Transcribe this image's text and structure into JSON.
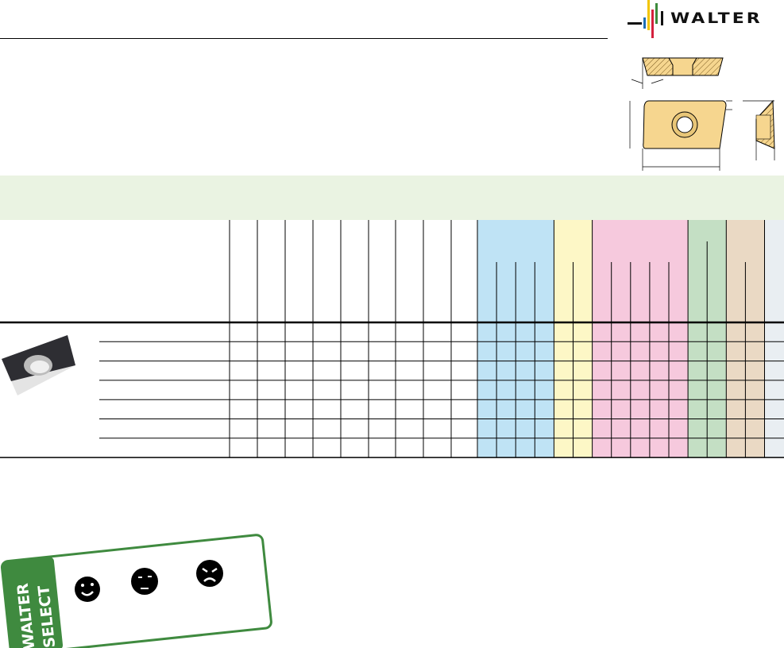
{
  "brand": {
    "logo_text": "WALTER",
    "logo_bar_colors": [
      "#1f6fb5",
      "#f2c500",
      "#d4213d",
      "#3d8b3d"
    ]
  },
  "material_groups": [
    {
      "key": "P",
      "color": "#bfe3f5",
      "subcolumns": 4
    },
    {
      "key": "M",
      "color": "#fdf7c6",
      "subcolumns": 2
    },
    {
      "key": "K",
      "color": "#f6c9dd",
      "subcolumns": 5
    },
    {
      "key": "N",
      "color": "#c4dfc4",
      "subcolumns": 2
    },
    {
      "key": "S",
      "color": "#ead9c4",
      "subcolumns": 2
    },
    {
      "key": "H",
      "color": "#e9eef2",
      "subcolumns": 1
    }
  ],
  "table": {
    "row_count": 7,
    "dimension_columns": 9
  },
  "walter_select": {
    "title_line1": "WALTER",
    "title_line2": "SELECT",
    "accent": "#3f8a3f",
    "icons": [
      "happy-face-icon",
      "neutral-face-icon",
      "angry-face-icon"
    ]
  }
}
